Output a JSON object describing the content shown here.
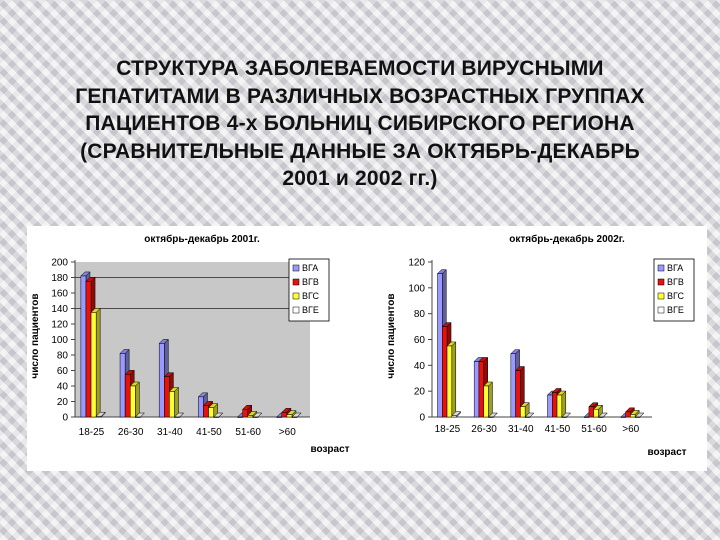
{
  "slide": {
    "title_lines": [
      "СТРУКТУРА ЗАБОЛЕВАЕМОСТИ ВИРУСНЫМИ",
      "ГЕПАТИТАМИ В РАЗЛИЧНЫХ ВОЗРАСТНЫХ ГРУППАХ",
      "ПАЦИЕНТОВ 4-х БОЛЬНИЦ СИБИРСКОГО РЕГИОНА",
      "(СРАВНИТЕЛЬНЫЕ ДАННЫЕ ЗА ОКТЯБРЬ-ДЕКАБРЬ",
      "2001 и 2002 гг.)"
    ]
  },
  "colors": {
    "ВГА": "#9999ff",
    "ВГВ": "#e8120c",
    "ВГС": "#ffff33",
    "ВГЕ": "#ffffff",
    "plot_wall": "#c8c8c8",
    "panel": "#ffffff"
  },
  "chart_data": [
    {
      "type": "bar",
      "title": "октябрь-декабрь 2001г.",
      "xlabel": "возраст",
      "ylabel": "число пациентов",
      "categories": [
        "18-25",
        "26-30",
        "31-40",
        "41-50",
        "51-60",
        ">60"
      ],
      "yticks": [
        0,
        20,
        40,
        60,
        80,
        100,
        120,
        140,
        160,
        180,
        200
      ],
      "ylim": [
        0,
        200
      ],
      "grid": true,
      "legend_position": "right",
      "series": [
        {
          "name": "ВГА",
          "values": [
            182,
            82,
            95,
            26,
            0,
            0
          ]
        },
        {
          "name": "ВГВ",
          "values": [
            175,
            55,
            52,
            15,
            10,
            6
          ]
        },
        {
          "name": "ВГС",
          "values": [
            135,
            40,
            33,
            12,
            2,
            3
          ]
        },
        {
          "name": "ВГЕ",
          "values": [
            1,
            0,
            0,
            0,
            0,
            0
          ]
        }
      ]
    },
    {
      "type": "bar",
      "title": "октябрь-декабрь 2002г.",
      "xlabel": "возраст",
      "ylabel": "число пациентов",
      "categories": [
        "18-25",
        "26-30",
        "31-40",
        "41-50",
        "51-60",
        ">60"
      ],
      "yticks": [
        0,
        20,
        40,
        60,
        80,
        100,
        120
      ],
      "ylim": [
        0,
        120
      ],
      "grid": false,
      "legend_position": "right",
      "series": [
        {
          "name": "ВГА",
          "values": [
            111,
            43,
            49,
            17,
            0,
            0
          ]
        },
        {
          "name": "ВГВ",
          "values": [
            70,
            43,
            36,
            19,
            8,
            4
          ]
        },
        {
          "name": "ВГС",
          "values": [
            55,
            24,
            8,
            17,
            6,
            2
          ]
        },
        {
          "name": "ВГЕ",
          "values": [
            1,
            0,
            0,
            0,
            0,
            0
          ]
        }
      ]
    }
  ]
}
